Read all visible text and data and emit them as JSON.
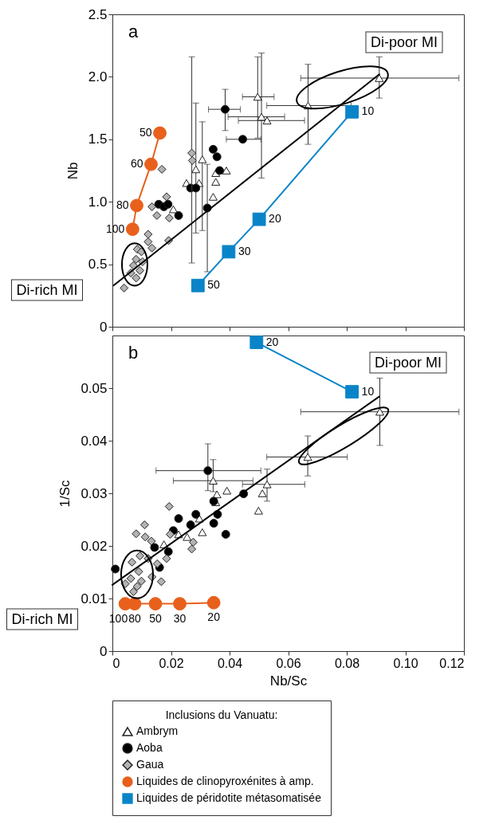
{
  "chart_data": [
    {
      "type": "scatter",
      "title": "a",
      "ylabel": "Nb",
      "xlim": [
        0,
        0.12
      ],
      "ylim": [
        0,
        2.5
      ],
      "xticks": [
        0,
        0.02,
        0.04,
        0.06,
        0.08,
        0.1,
        0.12
      ],
      "yticks": [
        0,
        0.5,
        {
          "value": 1,
          "label": "1.0"
        },
        1.5,
        {
          "value": 2,
          "label": "2.0"
        },
        2.5
      ],
      "tick_labels": "y",
      "legend": "bottom",
      "annotations": [
        "Di-poor MI",
        "Di-rich MI",
        {
          "text": "50",
          "x": 0.0162,
          "y": 1.55
        },
        {
          "text": "60",
          "x": 0.0132,
          "y": 1.3
        },
        {
          "text": "80",
          "x": 0.0083,
          "y": 0.97
        },
        {
          "text": "100",
          "x": 0.0069,
          "y": 0.78
        },
        {
          "text": "50",
          "x": 0.0292,
          "y": 0.33
        },
        {
          "text": "30",
          "x": 0.0397,
          "y": 0.6
        },
        {
          "text": "20",
          "x": 0.0501,
          "y": 0.86
        },
        {
          "text": "10",
          "x": 0.0818,
          "y": 1.72
        }
      ],
      "series": [
        {
          "name": "Ambrym",
          "marker": "triangle",
          "color": "#ffffff",
          "x": [
            0.0496,
            0.0509,
            0.0528,
            0.0668,
            0.0911,
            0.0307,
            0.0285,
            0.0253,
            0.0296,
            0.0353,
            0.0389,
            0.0353,
            0.0344,
            0.0208
          ],
          "values": [
            1.84,
            1.68,
            1.65,
            1.77,
            1.99,
            1.34,
            1.26,
            1.15,
            1.15,
            1.23,
            1.25,
            1.16,
            1.04,
            0.94
          ],
          "errors": [
            [
              1.51,
              2.16
            ],
            [
              1.19,
              2.19
            ],
            null,
            [
              1.46,
              2.1
            ],
            [
              1.83,
              2.16
            ],
            [
              0.77,
              1.64
            ],
            [
              0.75,
              1.79
            ],
            null,
            null,
            null,
            null,
            null,
            null,
            null
          ],
          "xerrors": [
            [
              0.0444,
              0.0552
            ],
            [
              0.0395,
              0.0588
            ],
            [
              0.043,
              0.0656
            ],
            [
              0.0527,
              0.0815
            ],
            [
              0.0643,
              0.1183
            ],
            null,
            null,
            null,
            null,
            null,
            null,
            null,
            null,
            null
          ]
        },
        {
          "name": "Aoba",
          "marker": "circle",
          "color": "#000000",
          "x": [
            0.0385,
            0.0445,
            0.0344,
            0.0357,
            0.0366,
            0.0267,
            0.0285,
            0.0324,
            0.0226,
            0.0158,
            0.0176,
            0.019
          ],
          "values": [
            1.74,
            1.5,
            1.42,
            1.36,
            1.25,
            1.11,
            1.11,
            0.95,
            0.89,
            0.98,
            0.96,
            0.98
          ],
          "errors": [
            [
              1.57,
              1.9
            ],
            null,
            null,
            null,
            null,
            null,
            null,
            [
              0.44,
              1.3
            ],
            null,
            null,
            null,
            null
          ],
          "xerrors": [
            [
              0.0328,
              0.0437
            ],
            [
              0.0389,
              0.0507
            ],
            null,
            null,
            null,
            null,
            null,
            null,
            null,
            null,
            null,
            null
          ]
        },
        {
          "name": "Gaua",
          "marker": "diamond",
          "color": "#b3b3b3",
          "x": [
            0.0271,
            0.0273,
            0.0169,
            0.0185,
            0.0135,
            0.0152,
            0.0194,
            0.0192,
            0.0122,
            0.0135,
            0.0085,
            0.0099,
            0.0081,
            0.0103,
            0.0072,
            0.0094,
            0.0063,
            0.0081,
            0.004,
            0.0122
          ],
          "values": [
            1.39,
            1.33,
            1.26,
            1.04,
            0.96,
            0.89,
            0.87,
            0.69,
            0.68,
            0.63,
            0.62,
            0.6,
            0.54,
            0.52,
            0.49,
            0.45,
            0.43,
            0.39,
            0.31,
            0.74
          ],
          "errors": [
            [
              0.51,
              2.16
            ],
            null,
            null,
            null,
            null,
            null,
            null,
            null,
            null,
            null,
            null,
            null,
            null,
            null,
            null,
            null,
            null,
            null,
            null,
            null
          ]
        },
        {
          "name": "Liquides de clinopyroxénites à amp.",
          "type": "line",
          "marker": "circle",
          "color": "#e8601c",
          "x": [
            0.0162,
            0.0132,
            0.0083,
            0.0069
          ],
          "values": [
            1.55,
            1.3,
            0.97,
            0.78
          ]
        },
        {
          "name": "Liquides de péridotite métasomatisée",
          "type": "line",
          "marker": "square",
          "color": "#0a84c8",
          "x": [
            0.0292,
            0.0397,
            0.0501,
            0.0818
          ],
          "values": [
            0.33,
            0.6,
            0.86,
            1.72
          ]
        },
        {
          "type": "line",
          "marker": "none",
          "color": "#000000",
          "x": [
            0.0004,
            0.0911
          ],
          "values": [
            0.33,
            2.02
          ]
        }
      ]
    },
    {
      "type": "scatter",
      "title": "b",
      "xlabel": "Nb/Sc",
      "ylabel": "1/Sc",
      "xlim": [
        0,
        0.12
      ],
      "ylim": [
        0,
        0.06
      ],
      "xticks": [
        0,
        0.02,
        0.04,
        0.06,
        0.08,
        {
          "value": 0.1,
          "label": "0.10"
        },
        0.12
      ],
      "yticks": [
        0,
        0.01,
        0.02,
        0.03,
        0.04,
        0.05
      ],
      "legend": "bottom",
      "legend_title": "Inclusions du Vanuatu:",
      "annotations": [
        "Di-poor MI",
        "Di-rich MI",
        {
          "text": "100",
          "x": 0.0044,
          "y": 0.009
        },
        {
          "text": "80",
          "x": 0.0076,
          "y": 0.009
        },
        {
          "text": "50",
          "x": 0.0147,
          "y": 0.009
        },
        {
          "text": "30",
          "x": 0.023,
          "y": 0.009
        },
        {
          "text": "20",
          "x": 0.0346,
          "y": 0.0092
        },
        {
          "text": "20",
          "x": 0.0492,
          "y": 0.0587
        },
        {
          "text": "10",
          "x": 0.0818,
          "y": 0.0493
        }
      ],
      "series": [
        {
          "name": "Ambrym",
          "marker": "triangle",
          "color": "#ffffff",
          "x": [
            0.0913,
            0.0667,
            0.0528,
            0.0512,
            0.0499,
            0.0344,
            0.0391,
            0.0357,
            0.0353,
            0.0297,
            0.0307,
            0.0255,
            0.0226,
            0.0176
          ],
          "values": [
            0.0455,
            0.0369,
            0.0317,
            0.03,
            0.0267,
            0.0324,
            0.0305,
            0.0298,
            0.0283,
            0.0252,
            0.0226,
            0.0217,
            0.0222,
            0.0203
          ],
          "errors": [
            [
              0.0391,
              0.0519
            ],
            [
              0.0333,
              0.0409
            ],
            [
              0.0285,
              0.0346
            ],
            null,
            null,
            [
              0.0303,
              0.0364
            ],
            null,
            null,
            null,
            null,
            null,
            null,
            null,
            null
          ],
          "xerrors": [
            [
              0.0643,
              0.1183
            ],
            [
              0.0527,
              0.0802
            ],
            [
              0.0444,
              0.0657
            ],
            null,
            null,
            [
              0.0208,
              0.048
            ],
            null,
            null,
            null,
            null,
            null,
            null,
            null,
            null
          ]
        },
        {
          "name": "Aoba",
          "marker": "circle",
          "color": "#000000",
          "x": [
            0.0326,
            0.0448,
            0.0226,
            0.0285,
            0.0267,
            0.0346,
            0.0359,
            0.0346,
            0.0387,
            0.0208,
            0.0191,
            0.0144,
            0.0161,
            0.001
          ],
          "values": [
            0.0343,
            0.0299,
            0.0252,
            0.026,
            0.024,
            0.0285,
            0.026,
            0.0243,
            0.0222,
            0.0229,
            0.0189,
            0.0197,
            0.0159,
            0.0156
          ],
          "errors": [
            [
              0.0305,
              0.0394
            ],
            null,
            null,
            null,
            null,
            null,
            null,
            null,
            null,
            null,
            null,
            null,
            null,
            null
          ],
          "xerrors": [
            [
              0.0149,
              0.0507
            ],
            null,
            null,
            null,
            null,
            null,
            null,
            null,
            null,
            null,
            null,
            null,
            null,
            null
          ]
        },
        {
          "name": "Gaua",
          "marker": "diamond",
          "color": "#b3b3b3",
          "x": [
            0.0194,
            0.011,
            0.0081,
            0.0112,
            0.0133,
            0.0197,
            0.0276,
            0.0271,
            0.0185,
            0.0153,
            0.0122,
            0.0094,
            0.0067,
            0.009,
            0.0063,
            0.0099,
            0.0135,
            0.0167,
            0.0085,
            0.0044,
            0.0072
          ],
          "values": [
            0.0275,
            0.024,
            0.0223,
            0.0217,
            0.0209,
            0.0222,
            0.0207,
            0.0194,
            0.0176,
            0.0166,
            0.0176,
            0.0181,
            0.0169,
            0.0151,
            0.0138,
            0.0133,
            0.0141,
            0.0132,
            0.0123,
            0.0128,
            0.0113
          ]
        },
        {
          "name": "Liquides de clinopyroxénites à amp.",
          "type": "line",
          "marker": "circle",
          "color": "#e8601c",
          "x": [
            0.0044,
            0.0076,
            0.0147,
            0.023,
            0.0346
          ],
          "values": [
            0.009,
            0.009,
            0.009,
            0.009,
            0.0092
          ]
        },
        {
          "name": "Liquides de péridotite métasomatisée",
          "type": "line",
          "marker": "square",
          "color": "#0a84c8",
          "x": [
            0.0492,
            0.0818
          ],
          "values": [
            0.0587,
            0.0493
          ]
        },
        {
          "type": "line",
          "marker": "none",
          "color": "#000000",
          "x": [
            0,
            0.0911
          ],
          "values": [
            0.0126,
            0.0484
          ]
        }
      ]
    }
  ]
}
